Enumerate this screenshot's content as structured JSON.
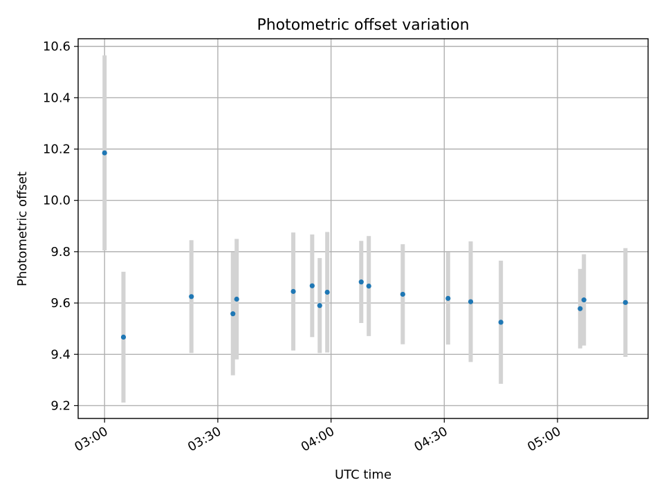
{
  "chart_data": {
    "type": "scatter",
    "title": "Photometric offset variation",
    "xlabel": "UTC time",
    "ylabel": "Photometric offset",
    "x_axis_type": "time",
    "xlim": [
      "02:53",
      "05:24"
    ],
    "ylim": [
      9.15,
      10.63
    ],
    "x_ticks": [
      "03:00",
      "03:30",
      "04:00",
      "04:30",
      "05:00"
    ],
    "y_ticks": [
      9.2,
      9.4,
      9.6,
      9.8,
      10.0,
      10.2,
      10.4,
      10.6
    ],
    "grid": true,
    "legend": "none",
    "marker_color": "#1f77b4",
    "errorbar_color": "#d3d3d3",
    "points": [
      {
        "x": "03:00",
        "y": 10.185,
        "err": 0.38
      },
      {
        "x": "03:05",
        "y": 9.467,
        "err": 0.255
      },
      {
        "x": "03:23",
        "y": 9.625,
        "err": 0.22
      },
      {
        "x": "03:34",
        "y": 9.558,
        "err": 0.24
      },
      {
        "x": "03:35",
        "y": 9.615,
        "err": 0.235
      },
      {
        "x": "03:50",
        "y": 9.645,
        "err": 0.23
      },
      {
        "x": "03:55",
        "y": 9.667,
        "err": 0.2
      },
      {
        "x": "03:57",
        "y": 9.59,
        "err": 0.185
      },
      {
        "x": "03:59",
        "y": 9.642,
        "err": 0.235
      },
      {
        "x": "04:08",
        "y": 9.682,
        "err": 0.16
      },
      {
        "x": "04:10",
        "y": 9.666,
        "err": 0.195
      },
      {
        "x": "04:19",
        "y": 9.634,
        "err": 0.195
      },
      {
        "x": "04:31",
        "y": 9.618,
        "err": 0.18
      },
      {
        "x": "04:37",
        "y": 9.605,
        "err": 0.235
      },
      {
        "x": "04:45",
        "y": 9.525,
        "err": 0.24
      },
      {
        "x": "05:06",
        "y": 9.578,
        "err": 0.155
      },
      {
        "x": "05:07",
        "y": 9.612,
        "err": 0.178
      },
      {
        "x": "05:18",
        "y": 9.602,
        "err": 0.212
      }
    ]
  }
}
